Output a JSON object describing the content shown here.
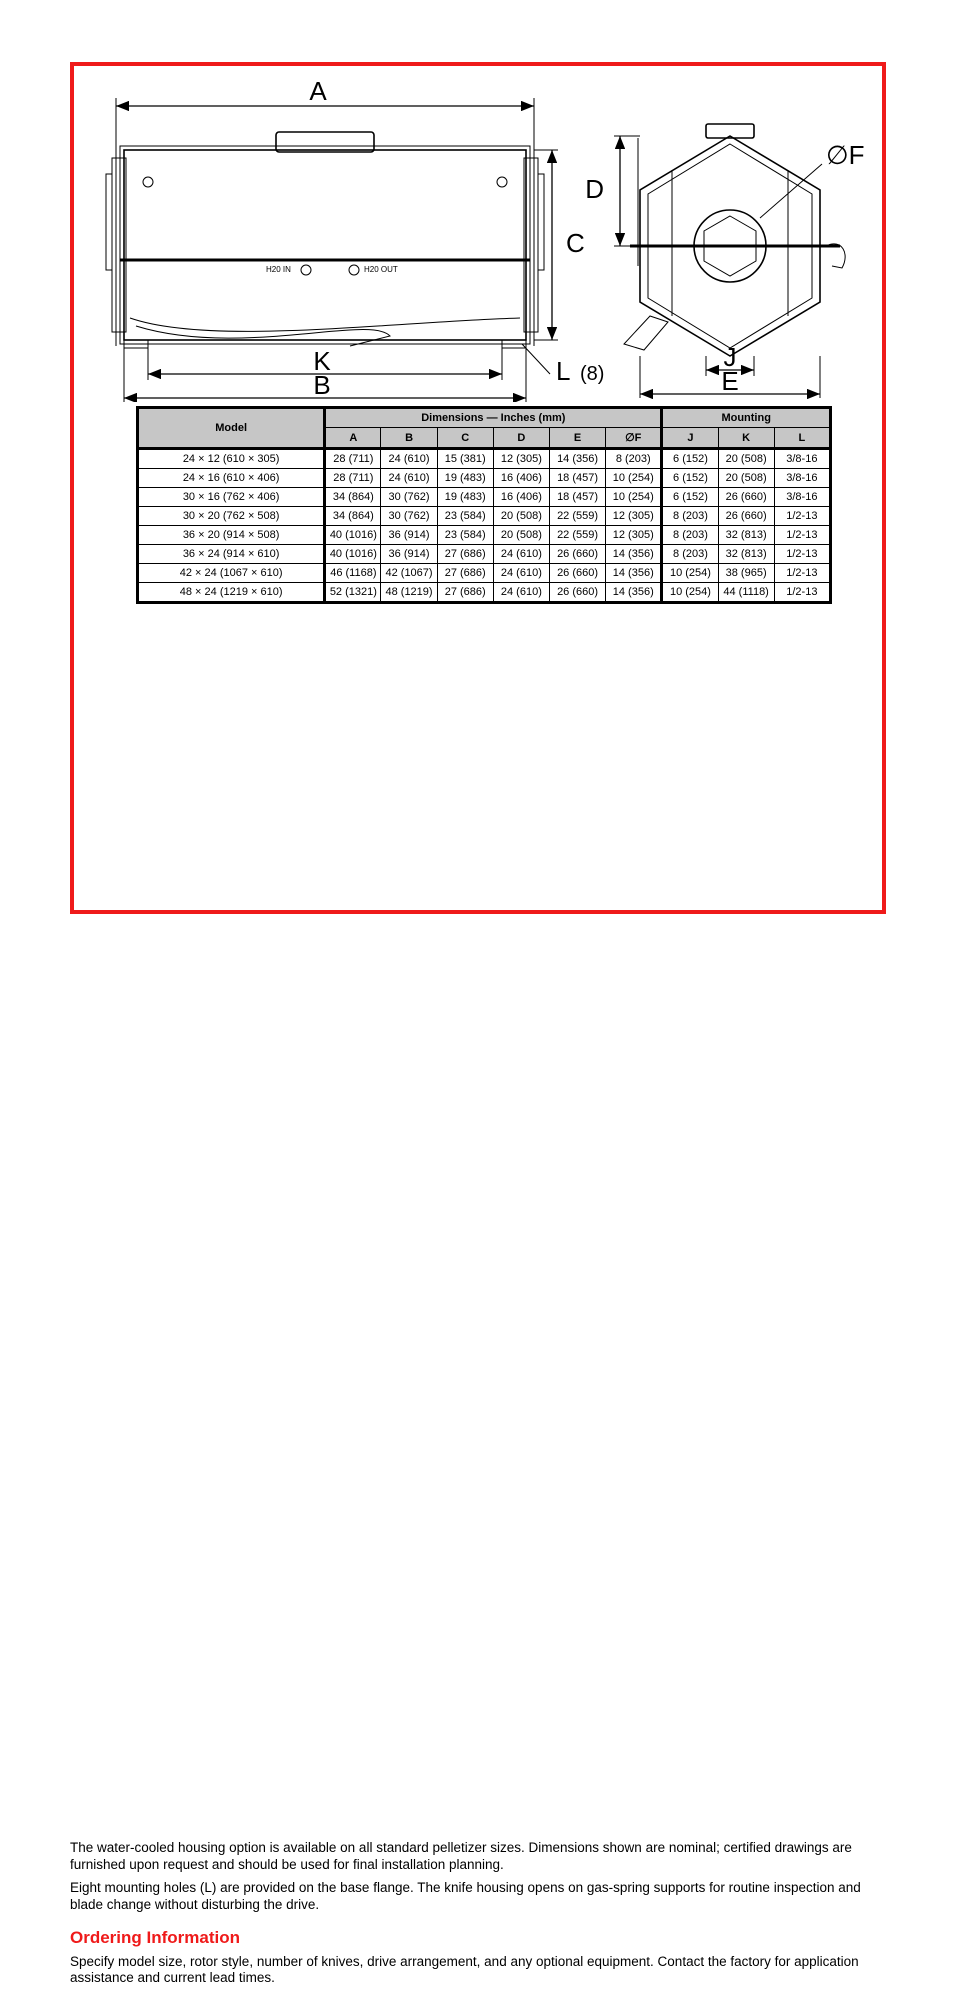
{
  "colors": {
    "accent_red": "#ef1a1a",
    "table_header_bg": "#c6c6c6",
    "black": "#000000",
    "white": "#ffffff"
  },
  "drawing_labels": {
    "A": "A",
    "B": "B",
    "C": "C",
    "D": "D",
    "E": "E",
    "F": "∅F",
    "J": "J",
    "K": "K",
    "L": "L",
    "L_count": "(8)",
    "h2o_in": "H20 IN",
    "h2o_out": "H20 OUT"
  },
  "table": {
    "header": {
      "model": "Model",
      "dims": "Dimensions — Inches (mm)",
      "mounting": "Mounting",
      "cols": [
        "A",
        "B",
        "C",
        "D",
        "E",
        "∅F",
        "J",
        "K",
        "L"
      ]
    },
    "rows": [
      {
        "model": "24 × 12  (610 × 305)",
        "A": "28 (711)",
        "B": "24 (610)",
        "C": "15 (381)",
        "D": "12 (305)",
        "E": "14 (356)",
        "F": "8 (203)",
        "J": "6 (152)",
        "K": "20 (508)",
        "L": "3/8-16"
      },
      {
        "model": "24 × 16  (610 × 406)",
        "A": "28 (711)",
        "B": "24 (610)",
        "C": "19 (483)",
        "D": "16 (406)",
        "E": "18 (457)",
        "F": "10 (254)",
        "J": "6 (152)",
        "K": "20 (508)",
        "L": "3/8-16"
      },
      {
        "model": "30 × 16  (762 × 406)",
        "A": "34 (864)",
        "B": "30 (762)",
        "C": "19 (483)",
        "D": "16 (406)",
        "E": "18 (457)",
        "F": "10 (254)",
        "J": "6 (152)",
        "K": "26 (660)",
        "L": "3/8-16"
      },
      {
        "model": "30 × 20  (762 × 508)",
        "A": "34 (864)",
        "B": "30 (762)",
        "C": "23 (584)",
        "D": "20 (508)",
        "E": "22 (559)",
        "F": "12 (305)",
        "J": "8 (203)",
        "K": "26 (660)",
        "L": "1/2-13"
      },
      {
        "model": "36 × 20  (914 × 508)",
        "A": "40 (1016)",
        "B": "36 (914)",
        "C": "23 (584)",
        "D": "20 (508)",
        "E": "22 (559)",
        "F": "12 (305)",
        "J": "8 (203)",
        "K": "32 (813)",
        "L": "1/2-13"
      },
      {
        "model": "36 × 24  (914 × 610)",
        "A": "40 (1016)",
        "B": "36 (914)",
        "C": "27 (686)",
        "D": "24 (610)",
        "E": "26 (660)",
        "F": "14 (356)",
        "J": "8 (203)",
        "K": "32 (813)",
        "L": "1/2-13"
      },
      {
        "model": "42 × 24  (1067 × 610)",
        "A": "46 (1168)",
        "B": "42 (1067)",
        "C": "27 (686)",
        "D": "24 (610)",
        "E": "26 (660)",
        "F": "14 (356)",
        "J": "10 (254)",
        "K": "38 (965)",
        "L": "1/2-13"
      },
      {
        "model": "48 × 24  (1219 × 610)",
        "A": "52 (1321)",
        "B": "48 (1219)",
        "C": "27 (686)",
        "D": "24 (610)",
        "E": "26 (660)",
        "F": "14 (356)",
        "J": "10 (254)",
        "K": "44 (1118)",
        "L": "1/2-13"
      }
    ]
  },
  "body": {
    "p1": "The water-cooled housing option is available on all standard pelletizer sizes. Dimensions shown are nominal; certified drawings are furnished upon request and should be used for final installation planning.",
    "p2": "Eight mounting holes (L) are provided on the base flange. The knife housing opens on gas-spring supports for routine inspection and blade change without disturbing the drive.",
    "heading": "Ordering Information",
    "p3": "Specify model size, rotor style, number of knives, drive arrangement, and any optional equipment. Contact the factory for application assistance and current lead times."
  }
}
